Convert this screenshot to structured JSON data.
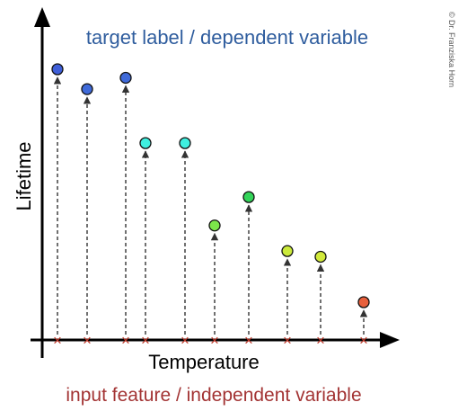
{
  "title": "target label / dependent variable",
  "xlabel": "Temperature",
  "ylabel": "Lifetime",
  "caption": "input  feature / independent variable",
  "copyright": "© Dr. Franziska Horn",
  "colors": {
    "title": "#2f5d9e",
    "caption": "#a33434",
    "axis": "#000000",
    "marker": "#c0392b",
    "dash": "#333333"
  },
  "points": [
    {
      "x": 1,
      "y": 9.5,
      "color": "#3f5fd9"
    },
    {
      "x": 2,
      "y": 8.8,
      "color": "#3f6ad9"
    },
    {
      "x": 3,
      "y": 9.2,
      "color": "#3f6ad9"
    },
    {
      "x": 4,
      "y": 6.9,
      "color": "#3ff0e0"
    },
    {
      "x": 5,
      "y": 6.9,
      "color": "#3ff0e0"
    },
    {
      "x": 6,
      "y": 4.0,
      "color": "#7ce54a"
    },
    {
      "x": 7,
      "y": 5.0,
      "color": "#33d459"
    },
    {
      "x": 8,
      "y": 3.1,
      "color": "#cbea3b"
    },
    {
      "x": 9,
      "y": 2.9,
      "color": "#d2ea3b"
    },
    {
      "x": 10,
      "y": 1.3,
      "color": "#e8603c"
    }
  ]
}
